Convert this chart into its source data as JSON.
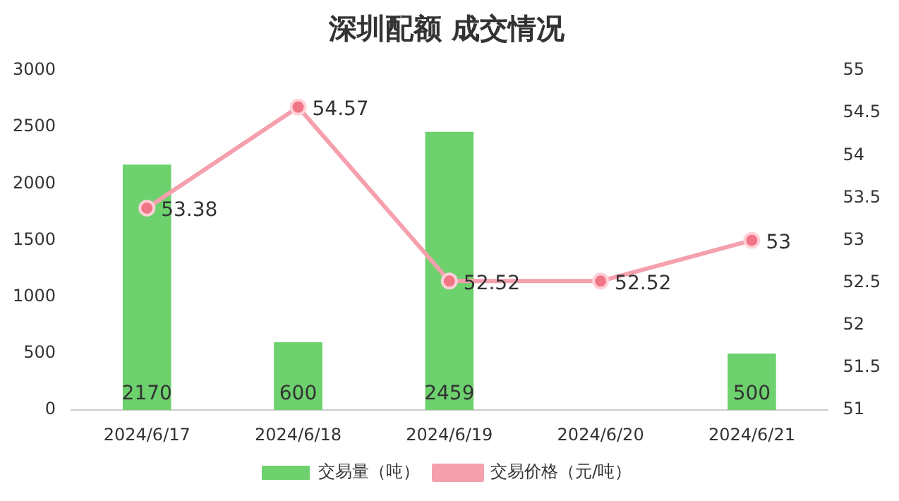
{
  "chart_data": {
    "type": "bar",
    "title": "深圳配额 成交情况",
    "categories": [
      "2024/6/17",
      "2024/6/18",
      "2024/6/19",
      "2024/6/20",
      "2024/6/21"
    ],
    "series": [
      {
        "name": "交易量（吨）",
        "color": "#6dd16d",
        "values": [
          2170,
          600,
          2459,
          null,
          500
        ]
      },
      {
        "name": "交易价格（元/吨）",
        "type": "line",
        "axis": "y2",
        "color": "#f5a0ad",
        "values": [
          53.38,
          54.57,
          52.52,
          52.52,
          53
        ]
      }
    ],
    "ylim": [
      0,
      3000
    ],
    "yticks": [
      0,
      500,
      1000,
      1500,
      2000,
      2500,
      3000
    ],
    "y2lim": [
      51,
      55
    ],
    "y2ticks": [
      51,
      51.5,
      52,
      52.5,
      53,
      53.5,
      54,
      54.5,
      55
    ],
    "data_labels": true,
    "legend": "bottom",
    "grid": false,
    "marker": "circle",
    "line_style": "solid"
  }
}
